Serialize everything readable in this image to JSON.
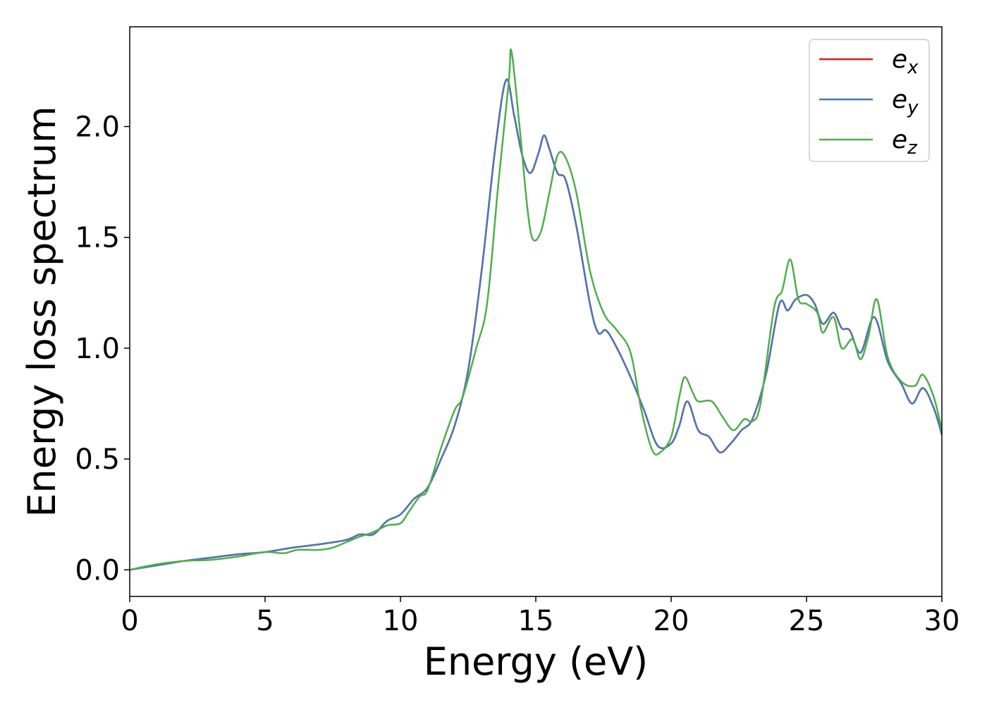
{
  "chart_data": {
    "type": "line",
    "title": "",
    "xlabel": "Energy (eV)",
    "ylabel": "Energy loss spectrum",
    "xlim": [
      0,
      30
    ],
    "ylim": [
      -0.12,
      2.45
    ],
    "xticks": [
      0,
      5,
      10,
      15,
      20,
      25,
      30
    ],
    "yticks": [
      0.0,
      0.5,
      1.0,
      1.5,
      2.0
    ],
    "xtick_labels": [
      "0",
      "5",
      "10",
      "15",
      "20",
      "25",
      "30"
    ],
    "ytick_labels": [
      "0.0",
      "0.5",
      "1.0",
      "1.5",
      "2.0"
    ],
    "grid": false,
    "legend_position": "top-right",
    "series": [
      {
        "name": "e",
        "sub": "x",
        "color": "#e41a1c",
        "points": [
          [
            0,
            0
          ],
          [
            1,
            0.02
          ],
          [
            2,
            0.04
          ],
          [
            3,
            0.055
          ],
          [
            4,
            0.07
          ],
          [
            5,
            0.08
          ],
          [
            6,
            0.1
          ],
          [
            7,
            0.115
          ],
          [
            8,
            0.135
          ],
          [
            8.5,
            0.16
          ],
          [
            9,
            0.16
          ],
          [
            9.5,
            0.22
          ],
          [
            10,
            0.25
          ],
          [
            10.5,
            0.32
          ],
          [
            11,
            0.37
          ],
          [
            11.5,
            0.5
          ],
          [
            12,
            0.65
          ],
          [
            12.5,
            0.9
          ],
          [
            13,
            1.35
          ],
          [
            13.5,
            1.9
          ],
          [
            13.9,
            2.21
          ],
          [
            14.2,
            2.05
          ],
          [
            14.5,
            1.87
          ],
          [
            14.8,
            1.79
          ],
          [
            15.1,
            1.88
          ],
          [
            15.3,
            1.96
          ],
          [
            15.5,
            1.9
          ],
          [
            15.8,
            1.79
          ],
          [
            16.1,
            1.76
          ],
          [
            16.5,
            1.55
          ],
          [
            17,
            1.2
          ],
          [
            17.3,
            1.07
          ],
          [
            17.6,
            1.08
          ],
          [
            18,
            1.0
          ],
          [
            18.5,
            0.87
          ],
          [
            19,
            0.72
          ],
          [
            19.5,
            0.56
          ],
          [
            20,
            0.57
          ],
          [
            20.3,
            0.65
          ],
          [
            20.6,
            0.76
          ],
          [
            21,
            0.63
          ],
          [
            21.4,
            0.6
          ],
          [
            21.8,
            0.53
          ],
          [
            22.2,
            0.57
          ],
          [
            22.6,
            0.63
          ],
          [
            23,
            0.68
          ],
          [
            23.5,
            0.88
          ],
          [
            24,
            1.2
          ],
          [
            24.3,
            1.17
          ],
          [
            24.6,
            1.22
          ],
          [
            25,
            1.24
          ],
          [
            25.3,
            1.2
          ],
          [
            25.6,
            1.11
          ],
          [
            26,
            1.16
          ],
          [
            26.3,
            1.09
          ],
          [
            26.6,
            1.08
          ],
          [
            27,
            0.98
          ],
          [
            27.5,
            1.14
          ],
          [
            28,
            0.94
          ],
          [
            28.5,
            0.84
          ],
          [
            28.9,
            0.75
          ],
          [
            29.3,
            0.82
          ],
          [
            29.7,
            0.73
          ],
          [
            30,
            0.61
          ]
        ]
      },
      {
        "name": "e",
        "sub": "y",
        "color": "#4a77b4",
        "points": [
          [
            0,
            0
          ],
          [
            1,
            0.02
          ],
          [
            2,
            0.04
          ],
          [
            3,
            0.055
          ],
          [
            4,
            0.07
          ],
          [
            5,
            0.08
          ],
          [
            6,
            0.1
          ],
          [
            7,
            0.115
          ],
          [
            8,
            0.135
          ],
          [
            8.5,
            0.16
          ],
          [
            9,
            0.16
          ],
          [
            9.5,
            0.22
          ],
          [
            10,
            0.25
          ],
          [
            10.5,
            0.32
          ],
          [
            11,
            0.37
          ],
          [
            11.5,
            0.5
          ],
          [
            12,
            0.65
          ],
          [
            12.5,
            0.9
          ],
          [
            13,
            1.35
          ],
          [
            13.5,
            1.9
          ],
          [
            13.9,
            2.21
          ],
          [
            14.2,
            2.05
          ],
          [
            14.5,
            1.87
          ],
          [
            14.8,
            1.79
          ],
          [
            15.1,
            1.88
          ],
          [
            15.3,
            1.96
          ],
          [
            15.5,
            1.9
          ],
          [
            15.8,
            1.79
          ],
          [
            16.1,
            1.76
          ],
          [
            16.5,
            1.55
          ],
          [
            17,
            1.2
          ],
          [
            17.3,
            1.07
          ],
          [
            17.6,
            1.08
          ],
          [
            18,
            1.0
          ],
          [
            18.5,
            0.87
          ],
          [
            19,
            0.72
          ],
          [
            19.5,
            0.56
          ],
          [
            20,
            0.57
          ],
          [
            20.3,
            0.65
          ],
          [
            20.6,
            0.76
          ],
          [
            21,
            0.63
          ],
          [
            21.4,
            0.6
          ],
          [
            21.8,
            0.53
          ],
          [
            22.2,
            0.57
          ],
          [
            22.6,
            0.63
          ],
          [
            23,
            0.68
          ],
          [
            23.5,
            0.88
          ],
          [
            24,
            1.2
          ],
          [
            24.3,
            1.17
          ],
          [
            24.6,
            1.22
          ],
          [
            25,
            1.24
          ],
          [
            25.3,
            1.2
          ],
          [
            25.6,
            1.11
          ],
          [
            26,
            1.16
          ],
          [
            26.3,
            1.09
          ],
          [
            26.6,
            1.08
          ],
          [
            27,
            0.98
          ],
          [
            27.5,
            1.14
          ],
          [
            28,
            0.94
          ],
          [
            28.5,
            0.84
          ],
          [
            28.9,
            0.75
          ],
          [
            29.3,
            0.82
          ],
          [
            29.7,
            0.73
          ],
          [
            30,
            0.61
          ]
        ]
      },
      {
        "name": "e",
        "sub": "z",
        "color": "#4daf4a",
        "points": [
          [
            0,
            0
          ],
          [
            1,
            0.025
          ],
          [
            2,
            0.04
          ],
          [
            3,
            0.045
          ],
          [
            4,
            0.06
          ],
          [
            5,
            0.08
          ],
          [
            5.7,
            0.075
          ],
          [
            6.2,
            0.09
          ],
          [
            7,
            0.09
          ],
          [
            7.5,
            0.1
          ],
          [
            8,
            0.125
          ],
          [
            8.5,
            0.15
          ],
          [
            9,
            0.17
          ],
          [
            9.5,
            0.2
          ],
          [
            10,
            0.21
          ],
          [
            10.3,
            0.26
          ],
          [
            10.7,
            0.33
          ],
          [
            11,
            0.36
          ],
          [
            11.5,
            0.55
          ],
          [
            12,
            0.72
          ],
          [
            12.3,
            0.78
          ],
          [
            12.8,
            1.0
          ],
          [
            13.2,
            1.2
          ],
          [
            13.6,
            1.72
          ],
          [
            14,
            2.2
          ],
          [
            14.1,
            2.34
          ],
          [
            14.4,
            2.0
          ],
          [
            14.7,
            1.62
          ],
          [
            14.9,
            1.49
          ],
          [
            15.2,
            1.53
          ],
          [
            15.5,
            1.7
          ],
          [
            15.8,
            1.87
          ],
          [
            16.1,
            1.86
          ],
          [
            16.5,
            1.7
          ],
          [
            17,
            1.35
          ],
          [
            17.5,
            1.16
          ],
          [
            18,
            1.08
          ],
          [
            18.5,
            0.98
          ],
          [
            18.9,
            0.72
          ],
          [
            19.3,
            0.54
          ],
          [
            19.6,
            0.53
          ],
          [
            20,
            0.6
          ],
          [
            20.3,
            0.78
          ],
          [
            20.5,
            0.87
          ],
          [
            20.8,
            0.8
          ],
          [
            21,
            0.76
          ],
          [
            21.5,
            0.76
          ],
          [
            21.9,
            0.69
          ],
          [
            22.3,
            0.63
          ],
          [
            22.7,
            0.68
          ],
          [
            23,
            0.67
          ],
          [
            23.3,
            0.75
          ],
          [
            23.8,
            1.18
          ],
          [
            24.1,
            1.26
          ],
          [
            24.4,
            1.4
          ],
          [
            24.7,
            1.22
          ],
          [
            25,
            1.2
          ],
          [
            25.4,
            1.16
          ],
          [
            25.6,
            1.07
          ],
          [
            26,
            1.14
          ],
          [
            26.3,
            1.0
          ],
          [
            26.7,
            1.04
          ],
          [
            27,
            0.95
          ],
          [
            27.3,
            1.06
          ],
          [
            27.6,
            1.22
          ],
          [
            28,
            0.96
          ],
          [
            28.5,
            0.85
          ],
          [
            29,
            0.83
          ],
          [
            29.3,
            0.88
          ],
          [
            29.7,
            0.78
          ],
          [
            30,
            0.63
          ]
        ]
      }
    ]
  }
}
